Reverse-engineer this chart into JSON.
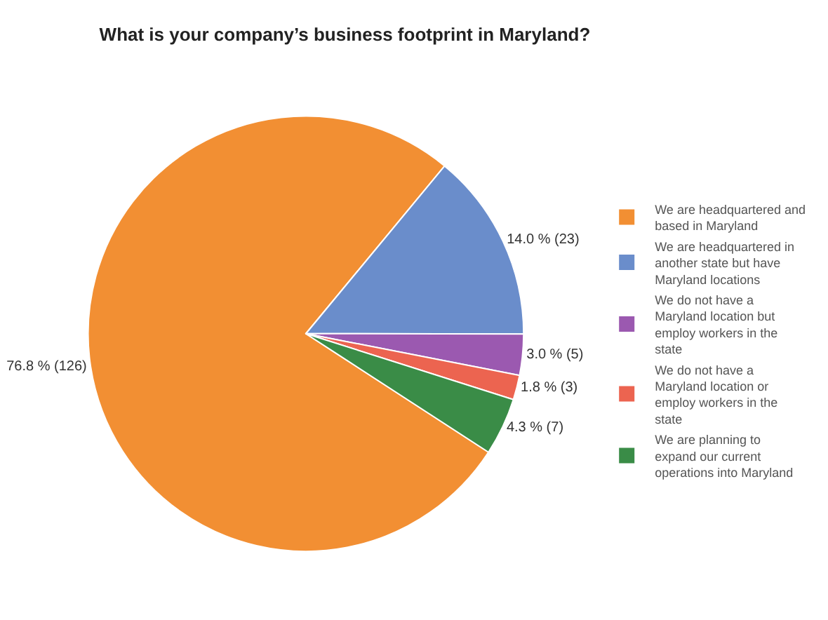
{
  "chart_data": {
    "type": "pie",
    "title": "What is your company’s business footprint in Maryland?",
    "categories": [
      "We are headquartered and based in Maryland",
      "We are headquartered in another state but have Maryland locations",
      "We do not have a Maryland location but employ workers in the state",
      "We do not have a Maryland location or employ workers in the state",
      "We are planning to expand our current operations into Maryland"
    ],
    "values": [
      126,
      23,
      5,
      3,
      7
    ],
    "value_labels": [
      "76.8 % (126)",
      "14.0 % (23)",
      "3.0 % (5)",
      "1.8 % (3)",
      "4.3 % (7)"
    ],
    "colors": [
      "#f28f33",
      "#6a8dcb",
      "#9b59b0",
      "#ec6450",
      "#3a8c47"
    ],
    "legend": "right"
  }
}
